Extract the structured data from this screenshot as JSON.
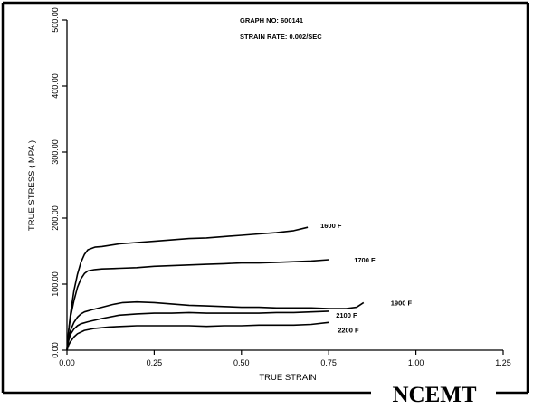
{
  "header": {
    "graph_no": "GRAPH NO:  600141",
    "strain_rate": "STRAIN RATE:  0.002/SEC"
  },
  "logo": "NCEMT",
  "chart_data": {
    "type": "line",
    "xlabel": "TRUE STRAIN",
    "ylabel": "TRUE STRESS ( MPA )",
    "xlim": [
      0,
      1.25
    ],
    "ylim": [
      0,
      500
    ],
    "x_ticks": [
      "0.00",
      "0.25",
      "0.50",
      "0.75",
      "1.00",
      "1.25"
    ],
    "y_ticks": [
      "0.00",
      "100.00",
      "200.00",
      "300.00",
      "400.00",
      "500.00"
    ],
    "grid": false,
    "series": [
      {
        "name": "1600 F",
        "x": [
          0,
          0.005,
          0.01,
          0.02,
          0.03,
          0.04,
          0.05,
          0.06,
          0.08,
          0.1,
          0.15,
          0.2,
          0.25,
          0.3,
          0.35,
          0.4,
          0.45,
          0.5,
          0.55,
          0.6,
          0.65,
          0.69
        ],
        "y": [
          0,
          30,
          55,
          90,
          115,
          133,
          145,
          152,
          156,
          157,
          161,
          163,
          165,
          167,
          169,
          170,
          172,
          174,
          176,
          178,
          181,
          186
        ]
      },
      {
        "name": "1700 F",
        "x": [
          0,
          0.005,
          0.01,
          0.02,
          0.03,
          0.04,
          0.05,
          0.06,
          0.08,
          0.1,
          0.15,
          0.2,
          0.25,
          0.3,
          0.35,
          0.4,
          0.45,
          0.5,
          0.55,
          0.6,
          0.65,
          0.7,
          0.75
        ],
        "y": [
          0,
          30,
          50,
          75,
          95,
          108,
          116,
          120,
          122,
          123,
          124,
          125,
          127,
          128,
          129,
          130,
          131,
          132,
          132,
          133,
          134,
          135,
          137
        ]
      },
      {
        "name": "1900 F",
        "x": [
          0,
          0.005,
          0.01,
          0.02,
          0.03,
          0.04,
          0.05,
          0.07,
          0.1,
          0.13,
          0.16,
          0.2,
          0.25,
          0.3,
          0.35,
          0.4,
          0.45,
          0.5,
          0.55,
          0.6,
          0.65,
          0.7,
          0.75,
          0.8,
          0.83,
          0.85
        ],
        "y": [
          0,
          18,
          30,
          42,
          50,
          55,
          58,
          61,
          65,
          69,
          72,
          73,
          72,
          70,
          68,
          67,
          66,
          65,
          65,
          64,
          64,
          64,
          63,
          63,
          65,
          72
        ]
      },
      {
        "name": "2100 F",
        "x": [
          0,
          0.005,
          0.01,
          0.02,
          0.03,
          0.04,
          0.06,
          0.1,
          0.15,
          0.2,
          0.25,
          0.3,
          0.35,
          0.4,
          0.45,
          0.5,
          0.55,
          0.6,
          0.65,
          0.7,
          0.75
        ],
        "y": [
          0,
          15,
          24,
          32,
          37,
          40,
          43,
          48,
          53,
          55,
          56,
          56,
          57,
          56,
          56,
          56,
          56,
          57,
          57,
          58,
          59
        ]
      },
      {
        "name": "2200 F",
        "x": [
          0,
          0.005,
          0.01,
          0.02,
          0.03,
          0.05,
          0.08,
          0.12,
          0.16,
          0.2,
          0.25,
          0.3,
          0.35,
          0.4,
          0.45,
          0.5,
          0.55,
          0.6,
          0.65,
          0.7,
          0.75
        ],
        "y": [
          0,
          8,
          13,
          20,
          25,
          30,
          33,
          35,
          36,
          37,
          37,
          37,
          37,
          36,
          37,
          37,
          38,
          38,
          38,
          39,
          42
        ]
      }
    ]
  }
}
